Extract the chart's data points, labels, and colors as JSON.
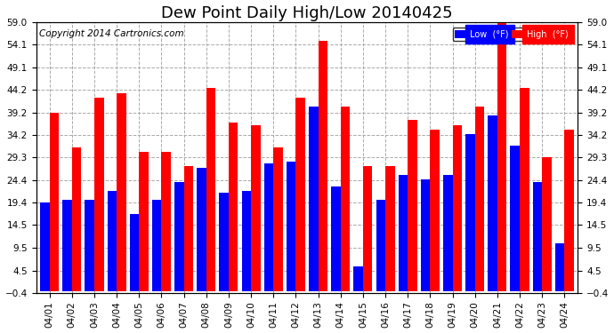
{
  "title": "Dew Point Daily High/Low 20140425",
  "copyright": "Copyright 2014 Cartronics.com",
  "yticks": [
    -0.4,
    4.5,
    9.5,
    14.5,
    19.4,
    24.4,
    29.3,
    34.2,
    39.2,
    44.2,
    49.1,
    54.1,
    59.0
  ],
  "ylim": [
    -0.4,
    59.0
  ],
  "dates": [
    "04/01",
    "04/02",
    "04/03",
    "04/04",
    "04/05",
    "04/06",
    "04/07",
    "04/08",
    "04/09",
    "04/10",
    "04/11",
    "04/12",
    "04/13",
    "04/14",
    "04/15",
    "04/16",
    "04/17",
    "04/18",
    "04/19",
    "04/20",
    "04/21",
    "04/22",
    "04/23",
    "04/24"
  ],
  "low": [
    19.4,
    20.0,
    20.0,
    22.0,
    17.0,
    20.0,
    24.0,
    27.0,
    21.5,
    22.0,
    28.0,
    28.5,
    40.5,
    23.0,
    5.5,
    20.0,
    25.5,
    24.5,
    25.5,
    34.5,
    38.5,
    32.0,
    24.0,
    10.5
  ],
  "high": [
    39.2,
    31.5,
    42.5,
    43.5,
    30.5,
    30.5,
    27.5,
    44.5,
    37.0,
    36.5,
    31.5,
    42.5,
    55.0,
    40.5,
    27.5,
    27.5,
    37.5,
    35.5,
    36.5,
    40.5,
    59.0,
    44.5,
    29.3,
    35.5
  ],
  "low_color": "#0000ff",
  "high_color": "#ff0000",
  "background_color": "#ffffff",
  "grid_color": "#aaaaaa",
  "legend_low_label": "Low  (°F)",
  "legend_high_label": "High  (°F)",
  "title_fontsize": 13,
  "tick_fontsize": 7.5,
  "copyright_fontsize": 7.5
}
